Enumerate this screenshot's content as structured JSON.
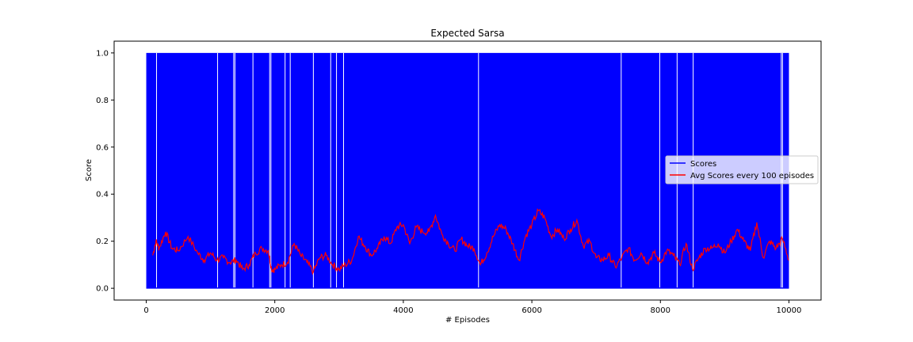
{
  "chart_data": {
    "type": "line",
    "title": "Expected Sarsa",
    "xlabel": "# Episodes",
    "ylabel": "Score",
    "xlim": [
      -500,
      10500
    ],
    "ylim": [
      -0.05,
      1.05
    ],
    "xticks": [
      0,
      2000,
      4000,
      6000,
      8000,
      10000
    ],
    "yticks": [
      0.0,
      0.2,
      0.4,
      0.6,
      0.8,
      1.0
    ],
    "xtick_labels": [
      "0",
      "2000",
      "4000",
      "6000",
      "8000",
      "10000"
    ],
    "ytick_labels": [
      "0.0",
      "0.2",
      "0.4",
      "0.6",
      "0.8",
      "1.0"
    ],
    "grid": false,
    "legend_position": "center-right",
    "series": [
      {
        "name": "Scores",
        "color": "#0000ff",
        "style": "binary-fill",
        "x_range": [
          0,
          10000
        ],
        "values_range": [
          0,
          1
        ],
        "zero_gaps": [
          160,
          1110,
          1360,
          1380,
          1660,
          1920,
          1940,
          2160,
          2240,
          2600,
          2870,
          2960,
          3070,
          5170,
          7390,
          7990,
          8260,
          8510,
          9880,
          9900
        ]
      },
      {
        "name": "Avg Scores every 100 episodes",
        "color": "#ff0000",
        "x": [
          100,
          150,
          200,
          300,
          400,
          500,
          650,
          800,
          900,
          1000,
          1100,
          1200,
          1300,
          1400,
          1500,
          1600,
          1700,
          1800,
          1900,
          1950,
          2000,
          2100,
          2200,
          2300,
          2400,
          2500,
          2600,
          2700,
          2800,
          2900,
          3000,
          3100,
          3200,
          3300,
          3400,
          3500,
          3600,
          3700,
          3800,
          3900,
          4000,
          4100,
          4200,
          4300,
          4400,
          4500,
          4600,
          4700,
          4800,
          4900,
          5000,
          5100,
          5200,
          5300,
          5400,
          5500,
          5600,
          5700,
          5800,
          5900,
          6000,
          6100,
          6200,
          6300,
          6400,
          6500,
          6600,
          6700,
          6800,
          6900,
          7000,
          7100,
          7200,
          7300,
          7400,
          7500,
          7600,
          7700,
          7800,
          7900,
          8000,
          8100,
          8200,
          8300,
          8400,
          8500,
          8600,
          8700,
          8800,
          8900,
          9000,
          9100,
          9200,
          9300,
          9400,
          9500,
          9600,
          9700,
          9800,
          9900,
          10000
        ],
        "values": [
          0.14,
          0.2,
          0.17,
          0.24,
          0.17,
          0.16,
          0.22,
          0.15,
          0.12,
          0.15,
          0.12,
          0.13,
          0.11,
          0.12,
          0.08,
          0.1,
          0.15,
          0.17,
          0.16,
          0.08,
          0.08,
          0.1,
          0.11,
          0.19,
          0.14,
          0.11,
          0.07,
          0.13,
          0.14,
          0.1,
          0.08,
          0.1,
          0.12,
          0.22,
          0.18,
          0.14,
          0.17,
          0.22,
          0.19,
          0.26,
          0.27,
          0.19,
          0.26,
          0.24,
          0.24,
          0.31,
          0.23,
          0.19,
          0.16,
          0.21,
          0.18,
          0.17,
          0.1,
          0.15,
          0.22,
          0.27,
          0.25,
          0.19,
          0.12,
          0.22,
          0.27,
          0.33,
          0.3,
          0.22,
          0.25,
          0.21,
          0.25,
          0.29,
          0.18,
          0.2,
          0.13,
          0.12,
          0.14,
          0.09,
          0.13,
          0.17,
          0.12,
          0.15,
          0.11,
          0.15,
          0.11,
          0.16,
          0.14,
          0.1,
          0.19,
          0.08,
          0.13,
          0.17,
          0.17,
          0.19,
          0.15,
          0.2,
          0.25,
          0.2,
          0.16,
          0.28,
          0.13,
          0.2,
          0.17,
          0.21,
          0.12
        ]
      }
    ]
  }
}
